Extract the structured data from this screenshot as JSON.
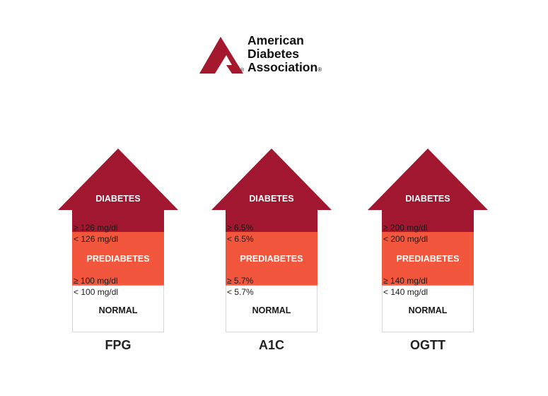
{
  "logo": {
    "line1": "American",
    "line2": "Diabetes",
    "line3": "Association",
    "registered": "®"
  },
  "colors": {
    "diabetes": "#a0172f",
    "prediabetes": "#f2563c",
    "normal_fill": "#ffffff",
    "normal_border": "#d6d6d6",
    "logo_mark": "#a5192e",
    "text_light": "#ffffff",
    "text_dark": "#1a1a1a"
  },
  "categories": {
    "diabetes": "DIABETES",
    "prediabetes": "PREDIABETES",
    "normal": "NORMAL"
  },
  "tests": [
    {
      "name": "FPG",
      "diabetes_min": "≥ 126 mg/dl",
      "prediabetes_max": "< 126 mg/dl",
      "prediabetes_min": "≥ 100 mg/dl",
      "normal_max": "< 100 mg/dl"
    },
    {
      "name": "A1C",
      "diabetes_min": "≥ 6.5%",
      "prediabetes_max": "< 6.5%",
      "prediabetes_min": "≥ 5.7%",
      "normal_max": "< 5.7%"
    },
    {
      "name": "OGTT",
      "diabetes_min": "≥ 200 mg/dl",
      "prediabetes_max": "< 200 mg/dl",
      "prediabetes_min": "≥ 140 mg/dl",
      "normal_max": "< 140 mg/dl"
    }
  ]
}
